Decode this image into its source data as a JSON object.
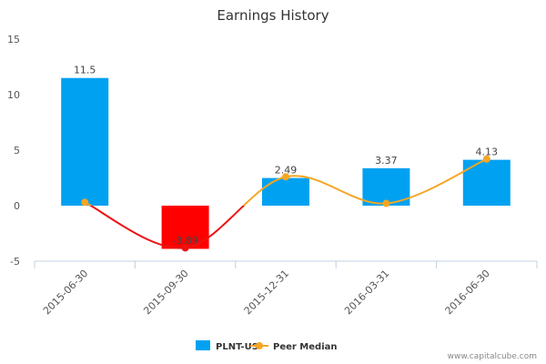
{
  "chart_data": {
    "type": "bar",
    "title": "Earnings History",
    "categories": [
      "2015-06-30",
      "2015-09-30",
      "2015-12-31",
      "2016-03-31",
      "2016-06-30"
    ],
    "series": [
      {
        "name": "PLNT-US",
        "type": "bar",
        "values": [
          11.5,
          -3.89,
          2.49,
          3.37,
          4.13
        ],
        "data_labels": [
          "11.5",
          "-3.89",
          "2.49",
          "3.37",
          "4.13"
        ],
        "color": "#00a1f1",
        "negative_color": "#ff0000"
      },
      {
        "name": "Peer Median",
        "type": "line",
        "values": [
          0.3,
          -3.8,
          2.6,
          0.2,
          4.2
        ],
        "color": "#f5a623",
        "negative_color": "#ee1111"
      }
    ],
    "yticks": [
      "15",
      "10",
      "5",
      "0",
      "-5"
    ],
    "ylim": [
      -5,
      15
    ],
    "xlabel": "",
    "ylabel": "",
    "grid": false,
    "legend_position": "bottom-center"
  },
  "credit": "www.capitalcube.com"
}
